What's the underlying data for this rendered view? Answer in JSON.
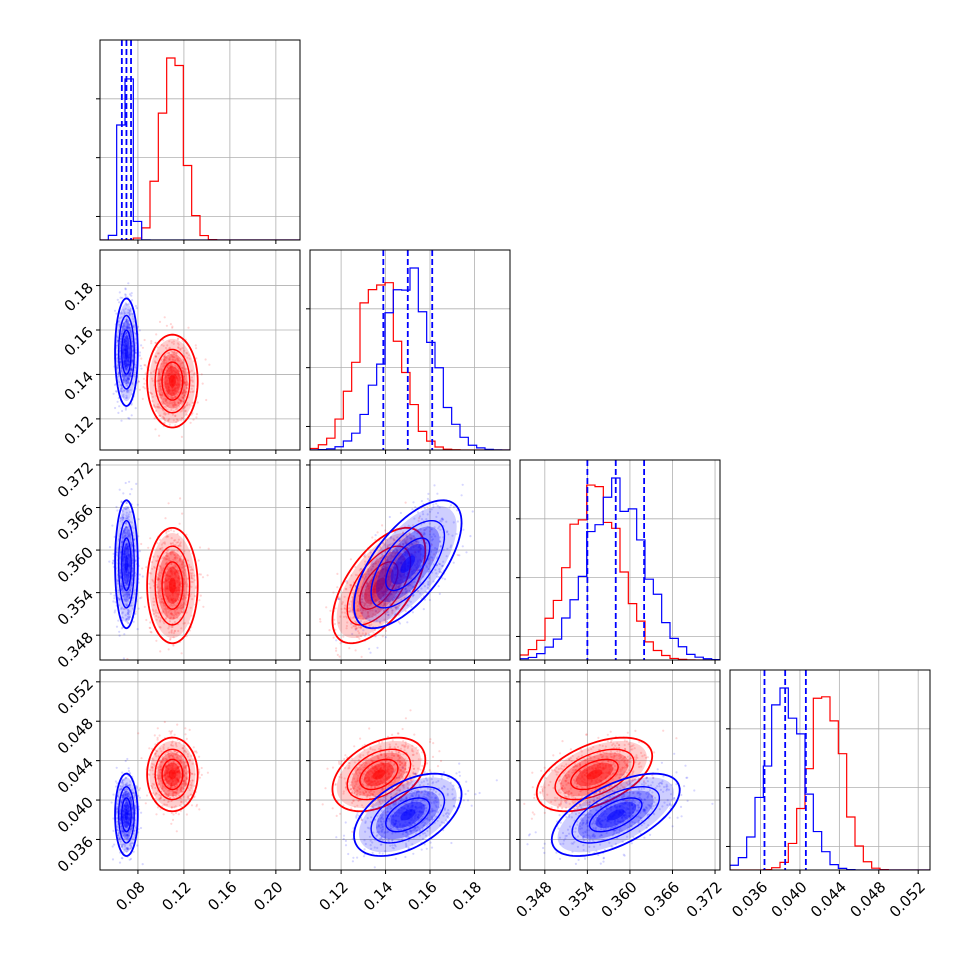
{
  "chart_data": {
    "type": "corner",
    "title": "",
    "parameters": [
      {
        "label": "",
        "range": [
          0.047,
          0.221
        ],
        "ticks": [
          0.08,
          0.12,
          0.16,
          0.2
        ],
        "tick_labels": [
          "0.08",
          "0.12",
          "0.16",
          "0.20"
        ]
      },
      {
        "label": "",
        "range": [
          0.106,
          0.196
        ],
        "ticks": [
          0.12,
          0.14,
          0.16,
          0.18
        ],
        "tick_labels": [
          "0.12",
          "0.14",
          "0.16",
          "0.18"
        ]
      },
      {
        "label": "",
        "range": [
          0.3445,
          0.3727
        ],
        "ticks": [
          0.348,
          0.354,
          0.36,
          0.366,
          0.372
        ],
        "tick_labels": [
          "0.348",
          "0.354",
          "0.360",
          "0.366",
          "0.372"
        ]
      },
      {
        "label": "",
        "range": [
          0.0329,
          0.0532
        ],
        "ticks": [
          0.036,
          0.04,
          0.044,
          0.048,
          0.052
        ],
        "tick_labels": [
          "0.036",
          "0.040",
          "0.044",
          "0.048",
          "0.052"
        ]
      }
    ],
    "series": [
      {
        "color": "#ff0000",
        "mean": [
          0.11,
          0.137,
          0.355,
          0.0426
        ],
        "sd": [
          0.01,
          0.0095,
          0.0037,
          0.0017
        ],
        "corr": [
          [
            1,
            0,
            0,
            0
          ],
          [
            0,
            1,
            0.6,
            0.4
          ],
          [
            0,
            0.6,
            1,
            0.5
          ],
          [
            0,
            0.4,
            0.5,
            1
          ]
        ],
        "quantiles": null
      },
      {
        "color": "#0000ff",
        "mean": [
          0.07,
          0.15,
          0.358,
          0.0385
        ],
        "sd": [
          0.0045,
          0.011,
          0.0041,
          0.0019
        ],
        "corr": [
          [
            1,
            0,
            0,
            0
          ],
          [
            0,
            1,
            0.65,
            0.5
          ],
          [
            0,
            0.65,
            1,
            0.6
          ],
          [
            0,
            0.5,
            0.6,
            1
          ]
        ],
        "quantiles": [
          [
            0.066,
            0.07,
            0.074
          ],
          [
            0.139,
            0.15,
            0.161
          ],
          [
            0.354,
            0.358,
            0.362
          ],
          [
            0.0364,
            0.0385,
            0.0406
          ]
        ]
      }
    ],
    "grid": true
  }
}
